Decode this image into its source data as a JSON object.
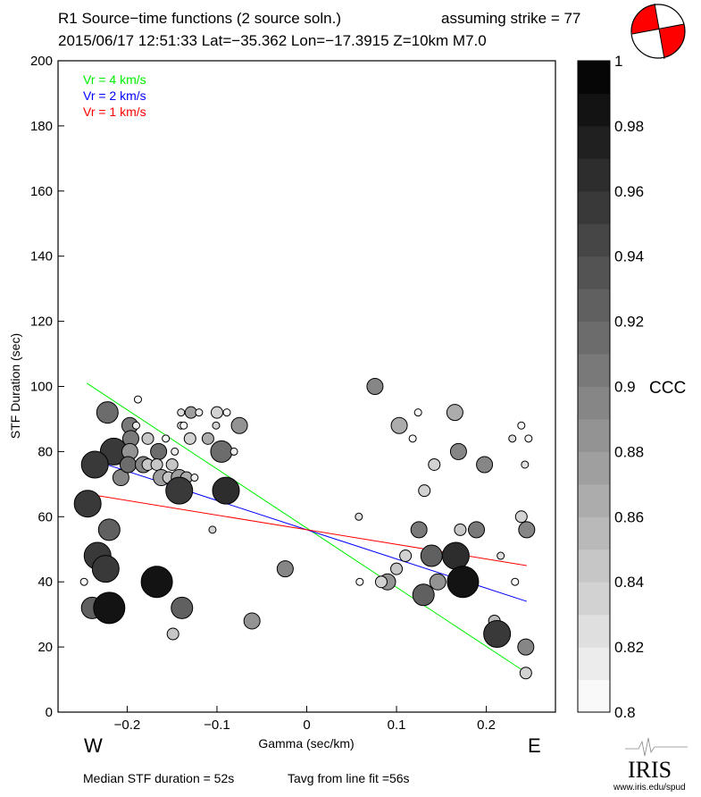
{
  "header": {
    "title": "R1 Source−time functions (2 source soln.)",
    "strike": "assuming strike = 77",
    "event": "2015/06/17 12:51:33  Lat=−35.362 Lon=−17.3915  Z=10km  M7.0"
  },
  "footer": {
    "median": "Median STF duration = 52s",
    "tavg": "Tavg from line fit =56s",
    "west": "W",
    "east": "E",
    "logo": "IRIS",
    "url": "www.iris.edu/spud"
  },
  "colors": {
    "vr4": "#00ee00",
    "vr2": "#0000ff",
    "vr1": "#ff0000",
    "beachball": "#ff0000"
  },
  "chart_data": {
    "type": "scatter",
    "xlabel": "Gamma (sec/km)",
    "ylabel": "STF Duration (sec)",
    "xlim": [
      -0.277,
      0.277
    ],
    "ylim": [
      0,
      200
    ],
    "xticks": [
      {
        "v": -0.2,
        "label": "−0.2"
      },
      {
        "v": -0.1,
        "label": "−0.1"
      },
      {
        "v": 0,
        "label": "0"
      },
      {
        "v": 0.1,
        "label": "0.1"
      },
      {
        "v": 0.2,
        "label": "0.2"
      }
    ],
    "yticks": [
      {
        "v": 0,
        "label": "0"
      },
      {
        "v": 20,
        "label": "20"
      },
      {
        "v": 40,
        "label": "40"
      },
      {
        "v": 60,
        "label": "60"
      },
      {
        "v": 80,
        "label": "80"
      },
      {
        "v": 100,
        "label": "100"
      },
      {
        "v": 120,
        "label": "120"
      },
      {
        "v": 140,
        "label": "140"
      },
      {
        "v": 160,
        "label": "160"
      },
      {
        "v": 180,
        "label": "180"
      },
      {
        "v": 200,
        "label": "200"
      }
    ],
    "legend": {
      "placement": "top-left",
      "entries": [
        {
          "label": "Vr = 4 km/s",
          "color": "#00ee00"
        },
        {
          "label": "Vr = 2 km/s",
          "color": "#0000ff"
        },
        {
          "label": "Vr = 1 km/s",
          "color": "#ff0000"
        }
      ]
    },
    "lines": [
      {
        "name": "Vr = 4 km/s",
        "color": "#00ee00",
        "x": [
          -0.245,
          0.245
        ],
        "y": [
          101,
          12
        ]
      },
      {
        "name": "Vr = 2 km/s",
        "color": "#0000ff",
        "x": [
          -0.245,
          0.245
        ],
        "y": [
          78,
          34
        ]
      },
      {
        "name": "Vr = 1 km/s",
        "color": "#ff0000",
        "x": [
          -0.245,
          0.245
        ],
        "y": [
          67,
          45
        ]
      }
    ],
    "colorbar": {
      "label": "CCC",
      "range": [
        0.8,
        1.0
      ],
      "step": 0.01,
      "ticks": [
        {
          "v": 0.8,
          "label": "0.8"
        },
        {
          "v": 0.82,
          "label": "0.82"
        },
        {
          "v": 0.84,
          "label": "0.84"
        },
        {
          "v": 0.86,
          "label": "0.86"
        },
        {
          "v": 0.88,
          "label": "0.88"
        },
        {
          "v": 0.9,
          "label": "0.9"
        },
        {
          "v": 0.92,
          "label": "0.92"
        },
        {
          "v": 0.94,
          "label": "0.94"
        },
        {
          "v": 0.96,
          "label": "0.96"
        },
        {
          "v": 0.98,
          "label": "0.98"
        },
        {
          "v": 1.0,
          "label": "1"
        }
      ]
    },
    "points_fields": [
      "gamma",
      "duration",
      "size_class",
      "ccc"
    ],
    "points": [
      [
        -0.222,
        92,
        4,
        0.91
      ],
      [
        -0.188,
        96,
        1,
        0.8
      ],
      [
        -0.197,
        88,
        3,
        0.9
      ],
      [
        -0.19,
        88,
        1,
        0.81
      ],
      [
        -0.196,
        84,
        3,
        0.9
      ],
      [
        -0.215,
        80,
        5,
        0.95
      ],
      [
        -0.236,
        76,
        5,
        0.95
      ],
      [
        -0.207,
        72,
        3,
        0.89
      ],
      [
        -0.197,
        80,
        3,
        0.88
      ],
      [
        -0.199,
        76,
        3,
        0.91
      ],
      [
        -0.177,
        84,
        2,
        0.84
      ],
      [
        -0.165,
        80,
        3,
        0.91
      ],
      [
        -0.182,
        76,
        3,
        0.89
      ],
      [
        -0.177,
        76,
        2,
        0.84
      ],
      [
        -0.167,
        76,
        2,
        0.84
      ],
      [
        -0.15,
        76,
        2,
        0.84
      ],
      [
        -0.162,
        72,
        3,
        0.87
      ],
      [
        -0.154,
        72,
        2,
        0.84
      ],
      [
        -0.142,
        72,
        3,
        0.87
      ],
      [
        -0.134,
        72,
        2,
        0.86
      ],
      [
        -0.142,
        68,
        5,
        0.95
      ],
      [
        -0.09,
        68,
        5,
        0.96
      ],
      [
        -0.095,
        80,
        4,
        0.91
      ],
      [
        -0.075,
        88,
        3,
        0.88
      ],
      [
        -0.11,
        84,
        2,
        0.86
      ],
      [
        -0.13,
        84,
        2,
        0.83
      ],
      [
        -0.14,
        92,
        1,
        0.82
      ],
      [
        -0.129,
        92,
        2,
        0.87
      ],
      [
        -0.12,
        92,
        1,
        0.81
      ],
      [
        -0.1,
        92,
        2,
        0.83
      ],
      [
        -0.089,
        92,
        1,
        0.8
      ],
      [
        -0.14,
        88,
        1,
        0.82
      ],
      [
        -0.137,
        88,
        1,
        0.8
      ],
      [
        -0.101,
        88,
        1,
        0.83
      ],
      [
        -0.157,
        84,
        1,
        0.8
      ],
      [
        -0.147,
        80,
        1,
        0.81
      ],
      [
        -0.081,
        80,
        1,
        0.81
      ],
      [
        -0.125,
        72,
        1,
        0.81
      ],
      [
        -0.244,
        64,
        5,
        0.95
      ],
      [
        -0.22,
        56,
        4,
        0.92
      ],
      [
        -0.105,
        56,
        1,
        0.83
      ],
      [
        -0.233,
        48,
        5,
        0.95
      ],
      [
        -0.224,
        44,
        5,
        0.95
      ],
      [
        -0.248,
        40,
        1,
        0.8
      ],
      [
        -0.167,
        40,
        6,
        0.98
      ],
      [
        -0.239,
        32,
        4,
        0.92
      ],
      [
        -0.22,
        32,
        6,
        0.98
      ],
      [
        -0.139,
        32,
        4,
        0.92
      ],
      [
        -0.149,
        24,
        2,
        0.84
      ],
      [
        -0.061,
        28,
        3,
        0.88
      ],
      [
        -0.024,
        44,
        3,
        0.89
      ],
      [
        0.076,
        100,
        3,
        0.89
      ],
      [
        0.124,
        92,
        1,
        0.8
      ],
      [
        0.165,
        92,
        3,
        0.86
      ],
      [
        0.103,
        88,
        3,
        0.86
      ],
      [
        0.118,
        84,
        1,
        0.8
      ],
      [
        0.239,
        88,
        1,
        0.8
      ],
      [
        0.229,
        84,
        1,
        0.82
      ],
      [
        0.247,
        84,
        1,
        0.8
      ],
      [
        0.169,
        80,
        3,
        0.89
      ],
      [
        0.198,
        76,
        3,
        0.89
      ],
      [
        0.142,
        76,
        2,
        0.83
      ],
      [
        0.243,
        76,
        1,
        0.82
      ],
      [
        0.131,
        68,
        2,
        0.83
      ],
      [
        0.058,
        60,
        1,
        0.82
      ],
      [
        0.239,
        60,
        2,
        0.83
      ],
      [
        0.125,
        56,
        3,
        0.9
      ],
      [
        0.171,
        56,
        2,
        0.84
      ],
      [
        0.189,
        56,
        3,
        0.9
      ],
      [
        0.245,
        56,
        3,
        0.89
      ],
      [
        0.11,
        48,
        2,
        0.83
      ],
      [
        0.139,
        48,
        4,
        0.92
      ],
      [
        0.166,
        48,
        5,
        0.96
      ],
      [
        0.216,
        48,
        1,
        0.82
      ],
      [
        0.1,
        44,
        2,
        0.84
      ],
      [
        0.09,
        40,
        3,
        0.88
      ],
      [
        0.083,
        40,
        2,
        0.83
      ],
      [
        0.059,
        40,
        1,
        0.8
      ],
      [
        0.146,
        40,
        3,
        0.88
      ],
      [
        0.174,
        40,
        6,
        0.98
      ],
      [
        0.232,
        40,
        1,
        0.8
      ],
      [
        0.13,
        36,
        4,
        0.92
      ],
      [
        0.209,
        28,
        2,
        0.85
      ],
      [
        0.212,
        24,
        5,
        0.95
      ],
      [
        0.244,
        20,
        3,
        0.89
      ],
      [
        0.244,
        12,
        2,
        0.83
      ]
    ]
  }
}
